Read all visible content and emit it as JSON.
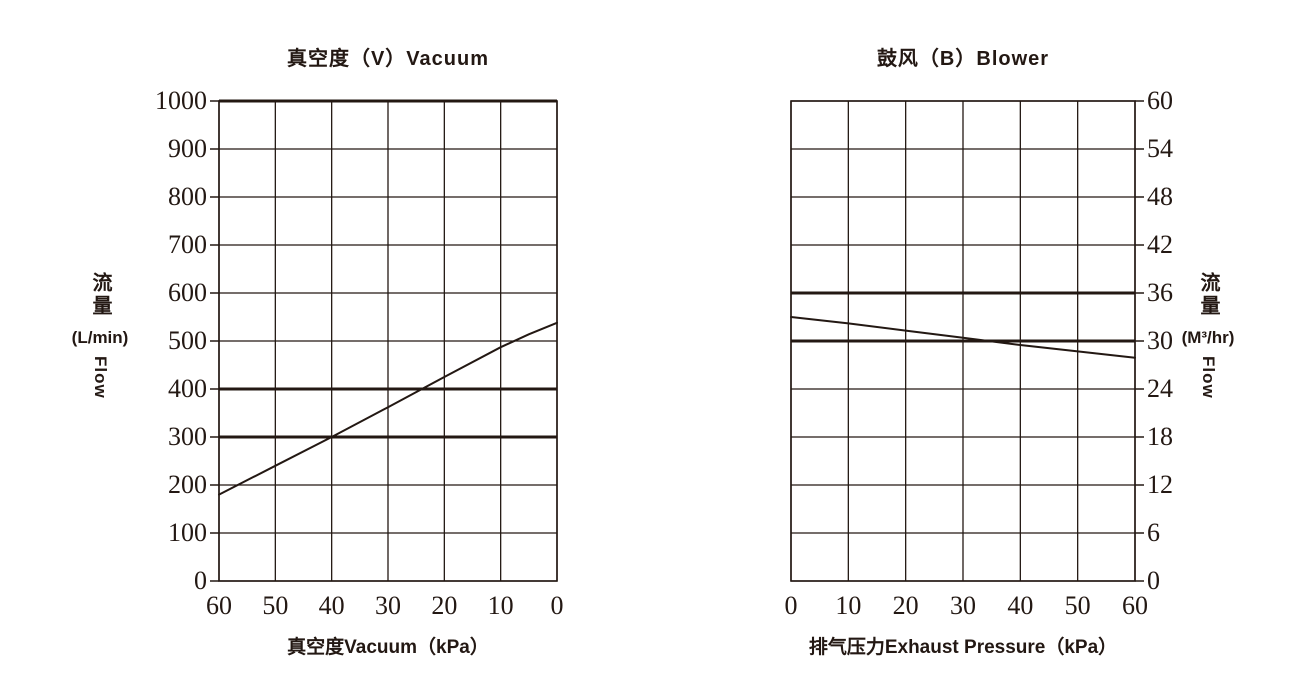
{
  "colors": {
    "ink": "#231813",
    "grid": "#2a201a",
    "background": "#ffffff"
  },
  "chart_data": [
    {
      "type": "line",
      "title": "真空度（V）Vacuum",
      "xlabel": "真空度Vacuum（kPa）",
      "ylabel_cn": "流量",
      "ylabel_unit": "(L/min)",
      "ylabel_en": "Flow",
      "y_axis_side": "left",
      "x_reversed": true,
      "grid": true,
      "legend": "none",
      "xlim": [
        0,
        60
      ],
      "ylim": [
        0,
        1000
      ],
      "x_ticks": [
        60,
        50,
        40,
        30,
        20,
        10,
        0
      ],
      "y_ticks": [
        1000,
        900,
        800,
        700,
        600,
        500,
        400,
        300,
        200,
        100,
        0
      ],
      "bold_y_values": [
        1000,
        400,
        300
      ],
      "series": [
        {
          "name": "vacuum-flow-curve",
          "points": [
            [
              60,
              180
            ],
            [
              50,
              240
            ],
            [
              40,
              300
            ],
            [
              30,
              362
            ],
            [
              20,
              425
            ],
            [
              10,
              487
            ],
            [
              5,
              514
            ],
            [
              0,
              538
            ]
          ]
        }
      ]
    },
    {
      "type": "line",
      "title": "鼓风（B）Blower",
      "xlabel": "排气压力Exhaust Pressure（kPa）",
      "ylabel_cn": "流量",
      "ylabel_unit": "(M³/hr)",
      "ylabel_en": "Flow",
      "y_axis_side": "right",
      "x_reversed": false,
      "grid": true,
      "legend": "none",
      "xlim": [
        0,
        60
      ],
      "ylim": [
        0,
        60
      ],
      "x_ticks": [
        0,
        10,
        20,
        30,
        40,
        50,
        60
      ],
      "y_ticks": [
        60,
        54,
        48,
        42,
        36,
        30,
        24,
        18,
        12,
        6,
        0
      ],
      "bold_y_values": [
        36,
        30
      ],
      "series": [
        {
          "name": "blower-flow-curve",
          "points": [
            [
              0,
              33
            ],
            [
              10,
              32.2
            ],
            [
              20,
              31.3
            ],
            [
              30,
              30.4
            ],
            [
              40,
              29.5
            ],
            [
              50,
              28.7
            ],
            [
              60,
              27.9
            ]
          ]
        }
      ]
    }
  ]
}
